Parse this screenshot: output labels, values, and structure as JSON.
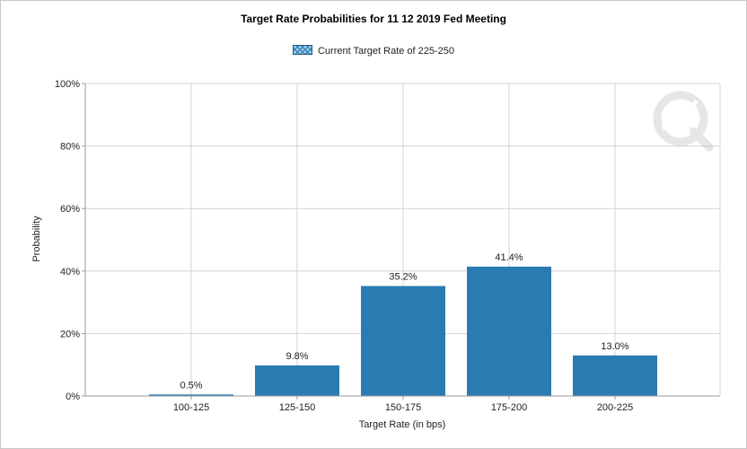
{
  "chart_data": {
    "type": "bar",
    "title": "Target Rate Probabilities for 11 12 2019 Fed Meeting",
    "legend": {
      "entry": "Current Target Rate of 225-250",
      "placement": "top-center"
    },
    "categories": [
      "100-125",
      "125-150",
      "150-175",
      "175-200",
      "200-225"
    ],
    "values": [
      0.5,
      9.8,
      35.2,
      41.4,
      13.0
    ],
    "data_labels": [
      "0.5%",
      "9.8%",
      "35.2%",
      "41.4%",
      "13.0%"
    ],
    "xlabel": "Target Rate (in bps)",
    "ylabel": "Probability",
    "ylim": [
      0,
      100
    ],
    "yticks": [
      "0%",
      "20%",
      "40%",
      "60%",
      "80%",
      "100%"
    ],
    "grid": true,
    "colors": {
      "bar": "#2b7bb3",
      "grid": "#d4d4d4",
      "axis": "#9a9a9a"
    }
  },
  "watermark_icon": "cme-q-logo-icon"
}
